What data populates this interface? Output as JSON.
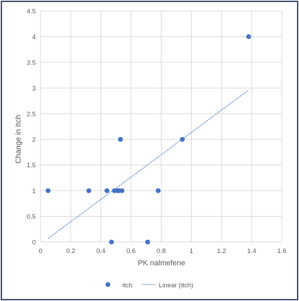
{
  "chart_data": {
    "type": "scatter",
    "title": "",
    "xlabel": "PK nalmefene",
    "ylabel": "Change in Itch",
    "xlim": [
      0,
      1.6
    ],
    "ylim": [
      0,
      4.5
    ],
    "xticks": [
      "0",
      "0.2",
      "0.4",
      "0.6",
      "0.8",
      "1",
      "1.2",
      "1.4",
      "1.6"
    ],
    "yticks": [
      "0",
      "0.5",
      "1",
      "1.5",
      "2",
      "2.5",
      "3",
      "3.5",
      "4",
      "4.5"
    ],
    "grid": true,
    "legend_position": "bottom",
    "series": [
      {
        "name": "itch",
        "color": "#4472c4",
        "points": [
          {
            "x": 0.05,
            "y": 1
          },
          {
            "x": 0.32,
            "y": 1
          },
          {
            "x": 0.44,
            "y": 1
          },
          {
            "x": 0.47,
            "y": 0
          },
          {
            "x": 0.49,
            "y": 1
          },
          {
            "x": 0.51,
            "y": 1
          },
          {
            "x": 0.52,
            "y": 1
          },
          {
            "x": 0.53,
            "y": 2
          },
          {
            "x": 0.54,
            "y": 1
          },
          {
            "x": 0.71,
            "y": 0
          },
          {
            "x": 0.78,
            "y": 1
          },
          {
            "x": 0.94,
            "y": 2
          },
          {
            "x": 1.38,
            "y": 4
          }
        ]
      }
    ],
    "trendline": {
      "name": "Linear (itch)",
      "color": "#4472c4",
      "style": "dotted",
      "x": [
        0.05,
        1.38
      ],
      "y": [
        0.07,
        2.96
      ]
    }
  }
}
